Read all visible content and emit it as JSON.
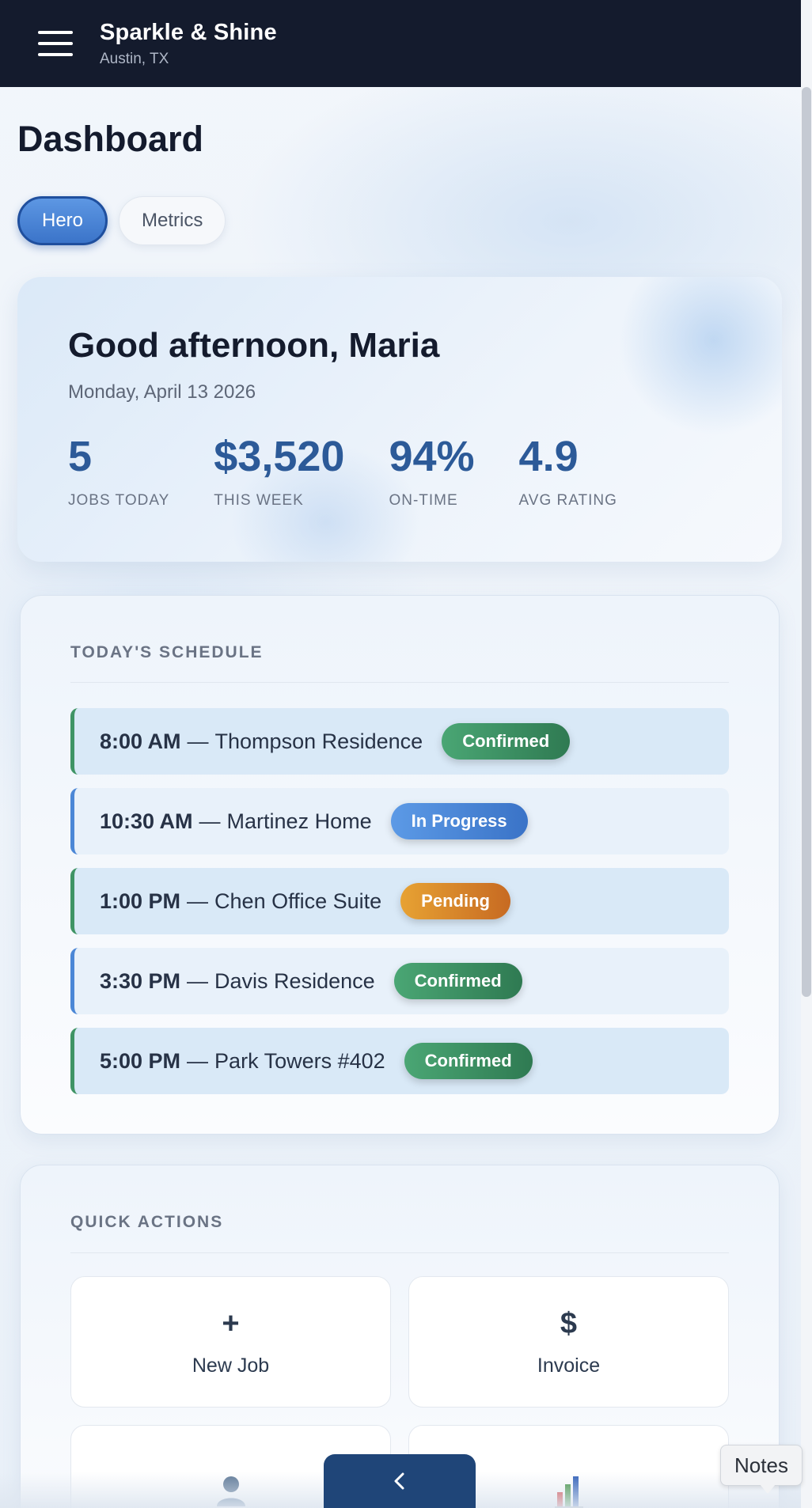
{
  "header": {
    "brand": "Sparkle & Shine",
    "location": "Austin, TX"
  },
  "page_title": "Dashboard",
  "tabs": [
    {
      "label": "Hero",
      "active": true
    },
    {
      "label": "Metrics",
      "active": false
    }
  ],
  "hero": {
    "greeting": "Good afternoon, Maria",
    "date": "Monday, April 13 2026",
    "stats": [
      {
        "value": "5",
        "label": "JOBS TODAY"
      },
      {
        "value": "$3,520",
        "label": "THIS WEEK"
      },
      {
        "value": "94%",
        "label": "ON-TIME"
      },
      {
        "value": "4.9",
        "label": "AVG RATING"
      }
    ]
  },
  "schedule": {
    "title": "TODAY'S SCHEDULE",
    "separator": "—",
    "items": [
      {
        "time": "8:00 AM",
        "client": "Thompson Residence",
        "status": "Confirmed"
      },
      {
        "time": "10:30 AM",
        "client": "Martinez Home",
        "status": "In Progress"
      },
      {
        "time": "1:00 PM",
        "client": "Chen Office Suite",
        "status": "Pending"
      },
      {
        "time": "3:30 PM",
        "client": "Davis Residence",
        "status": "Confirmed"
      },
      {
        "time": "5:00 PM",
        "client": "Park Towers #402",
        "status": "Confirmed"
      }
    ]
  },
  "quick_actions": {
    "title": "QUICK ACTIONS",
    "items": [
      {
        "icon": "plus-icon",
        "glyph": "+",
        "label": "New Job"
      },
      {
        "icon": "dollar-icon",
        "glyph": "$",
        "label": "Invoice"
      },
      {
        "icon": "user-icon",
        "glyph": "",
        "label": ""
      },
      {
        "icon": "bar-chart-icon",
        "glyph": "",
        "label": ""
      }
    ]
  },
  "floating": {
    "notes_label": "Notes"
  },
  "colors": {
    "header_bg": "#141b2d",
    "accent": "#2c5a98",
    "confirmed": "#3f9465",
    "in_progress": "#4b87d6",
    "pending": "#d98a2b"
  }
}
